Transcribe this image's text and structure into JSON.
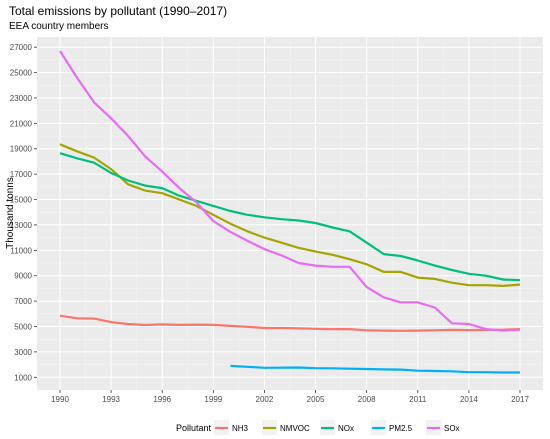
{
  "title": "Total emissions by pollutant (1990–2017)",
  "subtitle": "EEA country members",
  "chart_data": {
    "type": "line",
    "title": "Total emissions by pollutant (1990–2017)",
    "subtitle": "EEA country members",
    "xlabel": "",
    "ylabel": "Thousand tonns",
    "xlim": [
      1990,
      2017
    ],
    "ylim": [
      0,
      27800
    ],
    "x_ticks": [
      1990,
      1993,
      1996,
      1999,
      2002,
      2005,
      2008,
      2011,
      2014,
      2017
    ],
    "y_ticks": [
      1000,
      3000,
      5000,
      7000,
      9000,
      11000,
      13000,
      15000,
      17000,
      19000,
      21000,
      23000,
      25000,
      27000
    ],
    "grid": true,
    "legend": {
      "title": "Pollutant",
      "position": "bottom"
    },
    "series": [
      {
        "name": "NH3",
        "color": "#F8766D",
        "points": [
          [
            1990,
            5850
          ],
          [
            1991,
            5650
          ],
          [
            1992,
            5620
          ],
          [
            1993,
            5350
          ],
          [
            1994,
            5200
          ],
          [
            1995,
            5120
          ],
          [
            1996,
            5170
          ],
          [
            1997,
            5130
          ],
          [
            1998,
            5150
          ],
          [
            1999,
            5130
          ],
          [
            2000,
            5050
          ],
          [
            2001,
            4980
          ],
          [
            2002,
            4880
          ],
          [
            2003,
            4880
          ],
          [
            2004,
            4850
          ],
          [
            2005,
            4820
          ],
          [
            2006,
            4800
          ],
          [
            2007,
            4800
          ],
          [
            2008,
            4700
          ],
          [
            2009,
            4680
          ],
          [
            2010,
            4660
          ],
          [
            2011,
            4680
          ],
          [
            2012,
            4700
          ],
          [
            2013,
            4730
          ],
          [
            2014,
            4720
          ],
          [
            2015,
            4730
          ],
          [
            2016,
            4750
          ],
          [
            2017,
            4800
          ]
        ]
      },
      {
        "name": "NMVOC",
        "color": "#A3A500",
        "points": [
          [
            1990,
            19350
          ],
          [
            1991,
            18800
          ],
          [
            1992,
            18300
          ],
          [
            1993,
            17400
          ],
          [
            1994,
            16200
          ],
          [
            1995,
            15700
          ],
          [
            1996,
            15500
          ],
          [
            1997,
            15000
          ],
          [
            1998,
            14500
          ],
          [
            1999,
            13800
          ],
          [
            2000,
            13100
          ],
          [
            2001,
            12500
          ],
          [
            2002,
            12000
          ],
          [
            2003,
            11600
          ],
          [
            2004,
            11200
          ],
          [
            2005,
            10900
          ],
          [
            2006,
            10650
          ],
          [
            2007,
            10300
          ],
          [
            2008,
            9900
          ],
          [
            2009,
            9300
          ],
          [
            2010,
            9300
          ],
          [
            2011,
            8850
          ],
          [
            2012,
            8750
          ],
          [
            2013,
            8450
          ],
          [
            2014,
            8250
          ],
          [
            2015,
            8250
          ],
          [
            2016,
            8200
          ],
          [
            2017,
            8300
          ]
        ]
      },
      {
        "name": "NOx",
        "color": "#00BF7D",
        "points": [
          [
            1990,
            18650
          ],
          [
            1991,
            18250
          ],
          [
            1992,
            17900
          ],
          [
            1993,
            17100
          ],
          [
            1994,
            16500
          ],
          [
            1995,
            16100
          ],
          [
            1996,
            15900
          ],
          [
            1997,
            15300
          ],
          [
            1998,
            14900
          ],
          [
            1999,
            14500
          ],
          [
            2000,
            14100
          ],
          [
            2001,
            13800
          ],
          [
            2002,
            13600
          ],
          [
            2003,
            13450
          ],
          [
            2004,
            13350
          ],
          [
            2005,
            13150
          ],
          [
            2006,
            12800
          ],
          [
            2007,
            12500
          ],
          [
            2008,
            11600
          ],
          [
            2009,
            10700
          ],
          [
            2010,
            10550
          ],
          [
            2011,
            10200
          ],
          [
            2012,
            9800
          ],
          [
            2013,
            9450
          ],
          [
            2014,
            9150
          ],
          [
            2015,
            9000
          ],
          [
            2016,
            8700
          ],
          [
            2017,
            8650
          ]
        ]
      },
      {
        "name": "PM2.5",
        "color": "#00B0F6",
        "points": [
          [
            2000,
            1900
          ],
          [
            2001,
            1830
          ],
          [
            2002,
            1750
          ],
          [
            2003,
            1760
          ],
          [
            2004,
            1770
          ],
          [
            2005,
            1720
          ],
          [
            2006,
            1710
          ],
          [
            2007,
            1680
          ],
          [
            2008,
            1650
          ],
          [
            2009,
            1620
          ],
          [
            2010,
            1610
          ],
          [
            2011,
            1520
          ],
          [
            2012,
            1500
          ],
          [
            2013,
            1470
          ],
          [
            2014,
            1400
          ],
          [
            2015,
            1400
          ],
          [
            2016,
            1380
          ],
          [
            2017,
            1380
          ]
        ]
      },
      {
        "name": "SOx",
        "color": "#E76BF3",
        "points": [
          [
            1990,
            26700
          ],
          [
            1991,
            24600
          ],
          [
            1992,
            22650
          ],
          [
            1993,
            21400
          ],
          [
            1994,
            20000
          ],
          [
            1995,
            18400
          ],
          [
            1996,
            17200
          ],
          [
            1997,
            15900
          ],
          [
            1998,
            14800
          ],
          [
            1999,
            13300
          ],
          [
            2000,
            12450
          ],
          [
            2001,
            11750
          ],
          [
            2002,
            11100
          ],
          [
            2003,
            10600
          ],
          [
            2004,
            10000
          ],
          [
            2005,
            9800
          ],
          [
            2006,
            9700
          ],
          [
            2007,
            9700
          ],
          [
            2008,
            8100
          ],
          [
            2009,
            7300
          ],
          [
            2010,
            6900
          ],
          [
            2011,
            6900
          ],
          [
            2012,
            6500
          ],
          [
            2013,
            5250
          ],
          [
            2014,
            5200
          ],
          [
            2015,
            4800
          ],
          [
            2016,
            4680
          ],
          [
            2017,
            4750
          ]
        ]
      }
    ]
  }
}
